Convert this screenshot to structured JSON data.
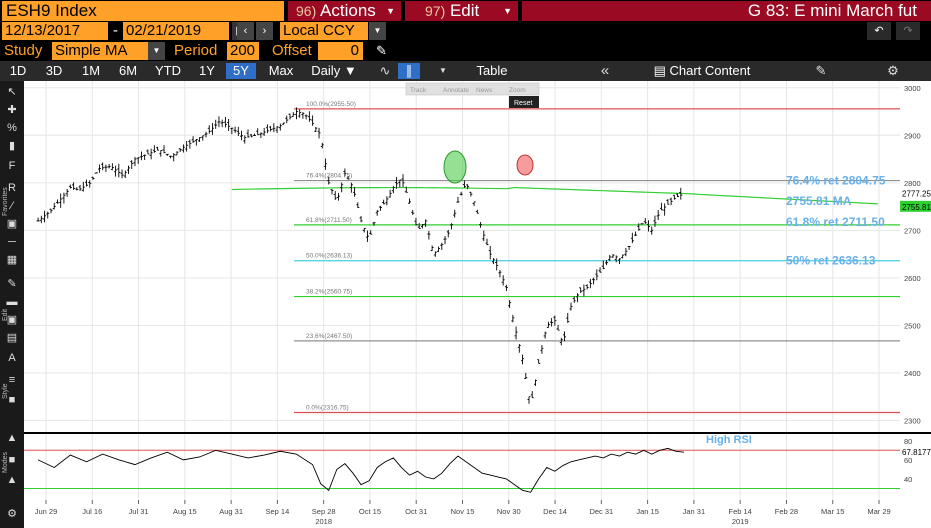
{
  "header": {
    "security": "ESH9 Index",
    "actions_num": "96)",
    "actions_label": "Actions",
    "edit_num": "97)",
    "edit_label": "Edit",
    "title": "G 83: E mini March fut"
  },
  "range": {
    "start": "12/13/2017",
    "dash": "-",
    "end": "02/21/2019",
    "currency": "Local CCY"
  },
  "study": {
    "study_label": "Study",
    "study_value": "Simple MA",
    "period_label": "Period",
    "period_value": "200",
    "offset_label": "Offset",
    "offset_value": "0"
  },
  "tabs": [
    "1D",
    "3D",
    "1M",
    "6M",
    "YTD",
    "1Y",
    "5Y",
    "Max"
  ],
  "active_tab": "5Y",
  "frequency": "Daily",
  "table_label": "Table",
  "chart_content_label": "Chart Content",
  "overlay_toolbar": [
    "Track",
    "Annotate",
    "News",
    "Zoom"
  ],
  "reset_label": "Reset",
  "sidebar_labels": {
    "favorites": "Favorites",
    "edit": "Edit",
    "style": "Style",
    "modes": "Modes"
  },
  "colors": {
    "bloomberg_orange": "#ffa028",
    "menu_red": "#9a0a23",
    "fib_red": "#e05050",
    "fib_green": "#30d030",
    "fib_cyan": "#40d0e0",
    "fib_grey": "#909090",
    "ma_green": "#30d030",
    "annot_blue": "#6ab0e8",
    "rsi_line": "#000000"
  },
  "chart_data": [
    {
      "type": "ohlc",
      "ylim": [
        2280,
        3010
      ],
      "yticks": [
        2300,
        2400,
        2500,
        2600,
        2700,
        2800,
        2900,
        3000
      ],
      "x_ticks": [
        "Jun 29",
        "Jul 16",
        "Jul 31",
        "Aug 15",
        "Aug 31",
        "Sep 14",
        "Sep 28",
        "Oct 15",
        "Oct 31",
        "Nov 15",
        "Nov 30",
        "Dec 14",
        "Dec 31",
        "Jan 15",
        "Jan 31",
        "Feb 14",
        "Feb 28",
        "Mar 15",
        "Mar 29"
      ],
      "year_labels": [
        {
          "label": "2018",
          "after_tick": 6
        },
        {
          "label": "2019",
          "after_tick": 15
        }
      ],
      "fib_levels": [
        {
          "level": "100.0%",
          "value": 2955.5,
          "label": "100.0%(2955.50)",
          "color": "fib_red"
        },
        {
          "level": "76.4%",
          "value": 2804.75,
          "label": "76.4%(2804.75)",
          "color": "fib_grey"
        },
        {
          "level": "61.8%",
          "value": 2711.5,
          "label": "61.8%(2711.50)",
          "color": "fib_green"
        },
        {
          "level": "50.0%",
          "value": 2636.13,
          "label": "50.0%(2636.13)",
          "color": "fib_cyan"
        },
        {
          "level": "38.2%",
          "value": 2560.75,
          "label": "38.2%(2560.75)",
          "color": "fib_green"
        },
        {
          "level": "23.6%",
          "value": 2467.5,
          "label": "23.6%(2467.50)",
          "color": "fib_grey"
        },
        {
          "level": "0.0%",
          "value": 2316.75,
          "label": "0.0%(2316.75)",
          "color": "fib_red"
        }
      ],
      "annotations": [
        {
          "text": "76.4% ret 2804.75",
          "value": 2804.75
        },
        {
          "text": "2755.81 MA",
          "value": 2762
        },
        {
          "text": "61.8% ret 2711.50",
          "value": 2718
        },
        {
          "text": "50% ret 2636.13",
          "value": 2636.13
        }
      ],
      "last_price": {
        "label": "2777.25",
        "value": 2777.25
      },
      "ma_value": {
        "label": "2755.81",
        "value": 2755.81
      },
      "price_path": [
        [
          0,
          2720
        ],
        [
          3,
          2740
        ],
        [
          6,
          2770
        ],
        [
          8,
          2790
        ],
        [
          10,
          2785
        ],
        [
          13,
          2800
        ],
        [
          15,
          2830
        ],
        [
          18,
          2835
        ],
        [
          21,
          2815
        ],
        [
          24,
          2850
        ],
        [
          27,
          2860
        ],
        [
          30,
          2870
        ],
        [
          33,
          2855
        ],
        [
          36,
          2875
        ],
        [
          39,
          2890
        ],
        [
          42,
          2905
        ],
        [
          45,
          2930
        ],
        [
          48,
          2915
        ],
        [
          51,
          2895
        ],
        [
          54,
          2900
        ],
        [
          57,
          2910
        ],
        [
          60,
          2920
        ],
        [
          62,
          2935
        ],
        [
          64,
          2950
        ],
        [
          66,
          2945
        ],
        [
          68,
          2925
        ],
        [
          70,
          2900
        ],
        [
          72,
          2800
        ],
        [
          74,
          2760
        ],
        [
          76,
          2820
        ],
        [
          78,
          2790
        ],
        [
          80,
          2720
        ],
        [
          82,
          2680
        ],
        [
          84,
          2740
        ],
        [
          86,
          2760
        ],
        [
          88,
          2790
        ],
        [
          90,
          2810
        ],
        [
          92,
          2760
        ],
        [
          94,
          2700
        ],
        [
          96,
          2720
        ],
        [
          98,
          2650
        ],
        [
          100,
          2670
        ],
        [
          102,
          2700
        ],
        [
          104,
          2760
        ],
        [
          106,
          2800
        ],
        [
          108,
          2760
        ],
        [
          110,
          2700
        ],
        [
          112,
          2650
        ],
        [
          114,
          2620
        ],
        [
          116,
          2580
        ],
        [
          118,
          2500
        ],
        [
          120,
          2430
        ],
        [
          122,
          2330
        ],
        [
          124,
          2420
        ],
        [
          126,
          2500
        ],
        [
          128,
          2510
        ],
        [
          130,
          2460
        ],
        [
          132,
          2540
        ],
        [
          134,
          2570
        ],
        [
          136,
          2580
        ],
        [
          138,
          2600
        ],
        [
          140,
          2620
        ],
        [
          142,
          2650
        ],
        [
          144,
          2640
        ],
        [
          146,
          2660
        ],
        [
          148,
          2690
        ],
        [
          150,
          2720
        ],
        [
          152,
          2700
        ],
        [
          154,
          2740
        ],
        [
          156,
          2755
        ],
        [
          158,
          2770
        ],
        [
          160,
          2777
        ]
      ]
    },
    {
      "type": "line",
      "name": "RSI",
      "ylim": [
        20,
        85
      ],
      "yticks": [
        40,
        60,
        80
      ],
      "upper": 70,
      "lower": 30,
      "last_label": "67.8177",
      "annotation": "High RSI",
      "values": [
        [
          0,
          60
        ],
        [
          4,
          52
        ],
        [
          8,
          65
        ],
        [
          12,
          58
        ],
        [
          16,
          66
        ],
        [
          20,
          60
        ],
        [
          24,
          55
        ],
        [
          28,
          62
        ],
        [
          32,
          68
        ],
        [
          36,
          60
        ],
        [
          40,
          63
        ],
        [
          44,
          70
        ],
        [
          48,
          66
        ],
        [
          52,
          62
        ],
        [
          56,
          65
        ],
        [
          60,
          69
        ],
        [
          64,
          66
        ],
        [
          68,
          55
        ],
        [
          70,
          35
        ],
        [
          72,
          28
        ],
        [
          74,
          50
        ],
        [
          76,
          56
        ],
        [
          78,
          46
        ],
        [
          80,
          34
        ],
        [
          82,
          38
        ],
        [
          84,
          52
        ],
        [
          86,
          58
        ],
        [
          88,
          62
        ],
        [
          90,
          52
        ],
        [
          92,
          44
        ],
        [
          94,
          48
        ],
        [
          96,
          42
        ],
        [
          98,
          40
        ],
        [
          100,
          46
        ],
        [
          102,
          56
        ],
        [
          104,
          64
        ],
        [
          106,
          58
        ],
        [
          108,
          52
        ],
        [
          110,
          46
        ],
        [
          112,
          44
        ],
        [
          114,
          42
        ],
        [
          116,
          40
        ],
        [
          118,
          34
        ],
        [
          120,
          28
        ],
        [
          122,
          26
        ],
        [
          124,
          40
        ],
        [
          126,
          52
        ],
        [
          128,
          48
        ],
        [
          130,
          54
        ],
        [
          132,
          58
        ],
        [
          134,
          60
        ],
        [
          136,
          62
        ],
        [
          138,
          64
        ],
        [
          140,
          62
        ],
        [
          142,
          66
        ],
        [
          144,
          64
        ],
        [
          146,
          68
        ],
        [
          148,
          66
        ],
        [
          150,
          70
        ],
        [
          152,
          66
        ],
        [
          154,
          70
        ],
        [
          156,
          72
        ],
        [
          158,
          69
        ],
        [
          160,
          68
        ]
      ]
    }
  ]
}
